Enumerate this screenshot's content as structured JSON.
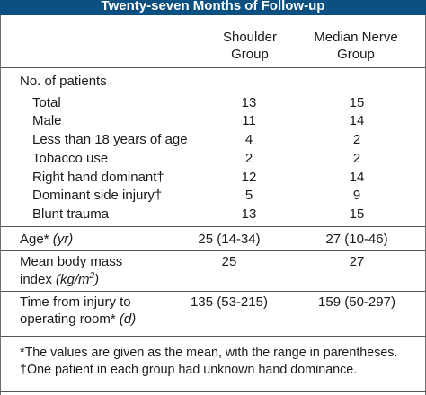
{
  "table": {
    "caption": "Twenty-seven Months of Follow-up",
    "columns": [
      {
        "line1": "Shoulder",
        "line2": "Group"
      },
      {
        "line1": "Median Nerve",
        "line2": "Group"
      }
    ],
    "section_label": "No. of patients",
    "patient_rows": [
      {
        "label": "Total",
        "v1": "13",
        "v2": "15"
      },
      {
        "label": "Male",
        "v1": "11",
        "v2": "14"
      },
      {
        "label": "Less than 18 years of age",
        "v1": "4",
        "v2": "2"
      },
      {
        "label": "Tobacco use",
        "v1": "2",
        "v2": "2"
      },
      {
        "label": "Right hand dominant†",
        "v1": "12",
        "v2": "14"
      },
      {
        "label": "Dominant side injury†",
        "v1": "5",
        "v2": "9"
      },
      {
        "label": "Blunt trauma",
        "v1": "13",
        "v2": "15"
      }
    ],
    "age": {
      "label": "Age*",
      "unit": "(yr)",
      "v1": "25 (14-34)",
      "v2": "27 (10-46)"
    },
    "bmi": {
      "line1": "Mean body mass",
      "line2_text": "index",
      "line2_unit": "(kg/m",
      "line2_sup": "2",
      "line2_close": ")",
      "v1": "25",
      "v2": "27"
    },
    "time": {
      "line1": "Time from injury to",
      "line2_text": "operating room*",
      "line2_unit": "(d)",
      "v1": "135 (53-215)",
      "v2": "159 (50-297)"
    }
  },
  "footnotes": {
    "note1": "*The values are given as the mean, with the range in parentheses.",
    "note2": "†One patient in each group had unknown hand dominance."
  }
}
